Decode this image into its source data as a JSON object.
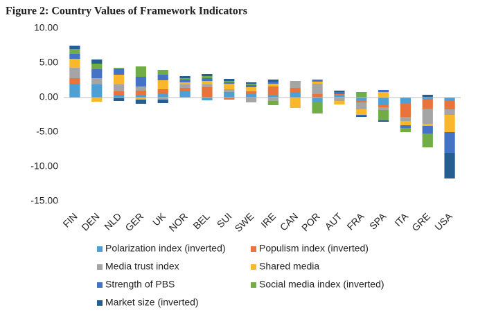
{
  "chart_data": {
    "type": "stacked-bar",
    "title": "Figure 2: Country Values of Framework Indicators",
    "categories": [
      "FIN",
      "DEN",
      "NLD",
      "GER",
      "UK",
      "NOR",
      "BEL",
      "SUI",
      "SWE",
      "IRE",
      "CAN",
      "POR",
      "AUT",
      "FRA",
      "SPA",
      "ITA",
      "GRE",
      "USA"
    ],
    "series": [
      {
        "name": "Polarization index (inverted)",
        "color": "#4e9fd4",
        "values": [
          2.0,
          1.9,
          0.4,
          0.3,
          0.5,
          1.0,
          -0.4,
          0.8,
          0.5,
          0.3,
          0.7,
          -0.7,
          0.3,
          -0.4,
          -1.1,
          -0.8,
          -0.3,
          -0.5
        ]
      },
      {
        "name": "Populism index (inverted)",
        "color": "#e8743b",
        "values": [
          0.8,
          0.0,
          0.5,
          0.7,
          0.7,
          0.4,
          1.5,
          -0.3,
          0.4,
          1.3,
          0.7,
          0.5,
          0.2,
          -0.3,
          -0.3,
          -2.0,
          -1.3,
          -1.2
        ]
      },
      {
        "name": "Media trust index",
        "color": "#a5a5a5",
        "values": [
          1.5,
          0.9,
          1.0,
          0.6,
          -0.3,
          0.5,
          0.4,
          0.4,
          -0.7,
          -0.5,
          1.0,
          1.5,
          -0.5,
          -1.0,
          -0.4,
          -0.6,
          -2.2,
          -0.8
        ]
      },
      {
        "name": "Shared media",
        "color": "#f9b82b",
        "values": [
          1.3,
          -0.6,
          1.4,
          -0.3,
          1.3,
          0.3,
          0.5,
          0.8,
          0.6,
          0.4,
          -1.5,
          0.3,
          -0.5,
          -0.8,
          0.8,
          -0.6,
          -0.3,
          -2.5
        ]
      },
      {
        "name": "Strength of PBS",
        "color": "#4472c4",
        "values": [
          0.7,
          1.3,
          0.8,
          1.4,
          0.8,
          0.4,
          0.4,
          0.2,
          0.3,
          0.3,
          0.0,
          0.3,
          0.3,
          -0.1,
          0.3,
          -0.4,
          -1.1,
          -3.0
        ]
      },
      {
        "name": "Social media index (inverted)",
        "color": "#70ad47",
        "values": [
          0.7,
          0.8,
          0.2,
          1.5,
          0.7,
          0.2,
          0.3,
          0.2,
          0.2,
          -0.6,
          0.0,
          -1.6,
          0.0,
          0.8,
          -1.5,
          -0.6,
          -2.0,
          0.0
        ]
      },
      {
        "name": "Market size (inverted)",
        "color": "#255e91",
        "values": [
          0.5,
          0.6,
          -0.5,
          -0.6,
          -0.5,
          0.3,
          0.3,
          0.3,
          0.2,
          0.3,
          0.0,
          0.0,
          0.2,
          -0.2,
          -0.2,
          0.0,
          0.4,
          -3.7
        ]
      }
    ],
    "ylim": [
      -15,
      10
    ],
    "yticks": [
      {
        "value": 10,
        "label": "10.00"
      },
      {
        "value": 5,
        "label": "5.00"
      },
      {
        "value": 0,
        "label": "0.00"
      },
      {
        "value": -5,
        "label": "-5.00"
      },
      {
        "value": -10,
        "label": "-10.00"
      },
      {
        "value": -15,
        "label": "-15.00"
      }
    ],
    "grid": false
  }
}
